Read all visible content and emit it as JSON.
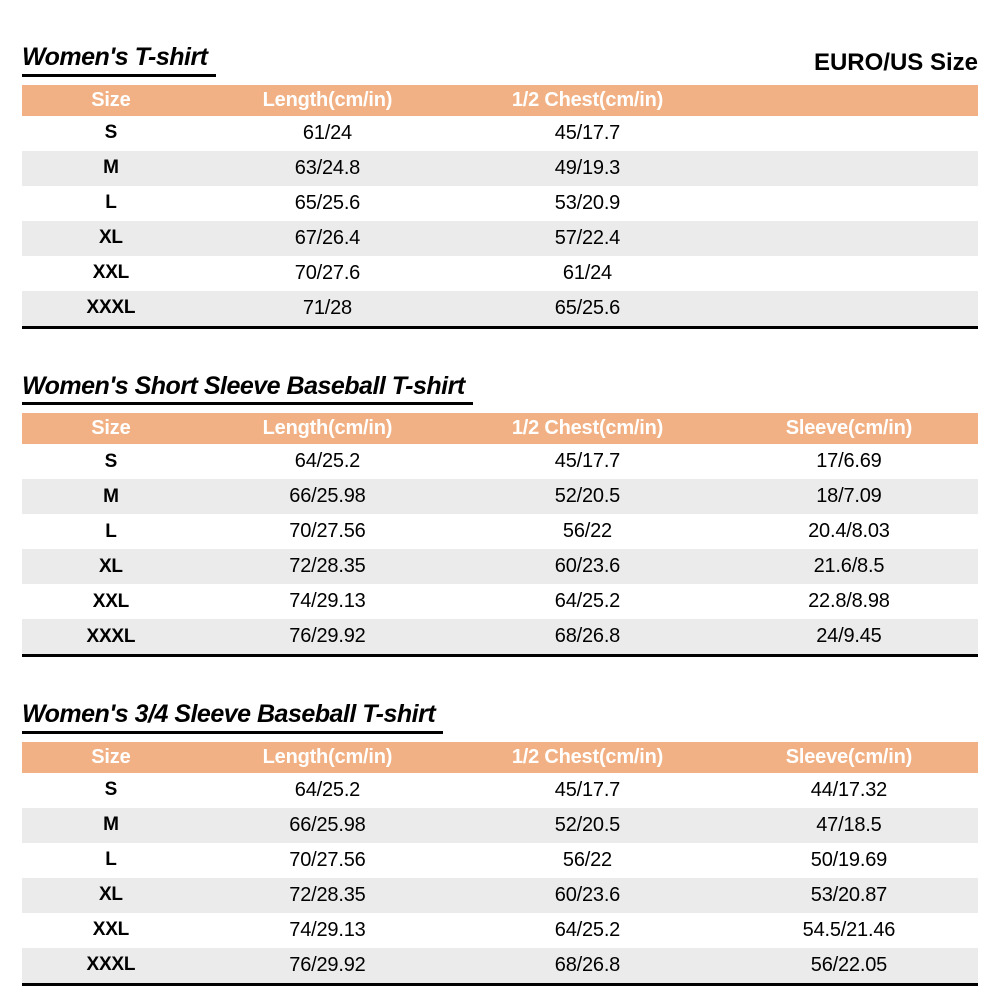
{
  "page": {
    "unit_label": "EURO/US Size"
  },
  "colors": {
    "header_bg": "#F2B184",
    "stripe_bg": "#EBEBEB"
  },
  "tables": [
    {
      "title": "Women's T-shirt",
      "columns": [
        "Size",
        "Length(cm/in)",
        "1/2 Chest(cm/in)",
        ""
      ],
      "rows": [
        [
          "S",
          "61/24",
          "45/17.7",
          ""
        ],
        [
          "M",
          "63/24.8",
          "49/19.3",
          ""
        ],
        [
          "L",
          "65/25.6",
          "53/20.9",
          ""
        ],
        [
          "XL",
          "67/26.4",
          "57/22.4",
          ""
        ],
        [
          "XXL",
          "70/27.6",
          "61/24",
          ""
        ],
        [
          "XXXL",
          "71/28",
          "65/25.6",
          ""
        ]
      ]
    },
    {
      "title": "Women's Short Sleeve Baseball T-shirt",
      "columns": [
        "Size",
        "Length(cm/in)",
        "1/2 Chest(cm/in)",
        "Sleeve(cm/in)"
      ],
      "rows": [
        [
          "S",
          "64/25.2",
          "45/17.7",
          "17/6.69"
        ],
        [
          "M",
          "66/25.98",
          "52/20.5",
          "18/7.09"
        ],
        [
          "L",
          "70/27.56",
          "56/22",
          "20.4/8.03"
        ],
        [
          "XL",
          "72/28.35",
          "60/23.6",
          "21.6/8.5"
        ],
        [
          "XXL",
          "74/29.13",
          "64/25.2",
          "22.8/8.98"
        ],
        [
          "XXXL",
          "76/29.92",
          "68/26.8",
          "24/9.45"
        ]
      ]
    },
    {
      "title": "Women's 3/4 Sleeve Baseball T-shirt",
      "columns": [
        "Size",
        "Length(cm/in)",
        "1/2 Chest(cm/in)",
        "Sleeve(cm/in)"
      ],
      "rows": [
        [
          "S",
          "64/25.2",
          "45/17.7",
          "44/17.32"
        ],
        [
          "M",
          "66/25.98",
          "52/20.5",
          "47/18.5"
        ],
        [
          "L",
          "70/27.56",
          "56/22",
          "50/19.69"
        ],
        [
          "XL",
          "72/28.35",
          "60/23.6",
          "53/20.87"
        ],
        [
          "XXL",
          "74/29.13",
          "64/25.2",
          "54.5/21.46"
        ],
        [
          "XXXL",
          "76/29.92",
          "68/26.8",
          "56/22.05"
        ]
      ]
    }
  ]
}
